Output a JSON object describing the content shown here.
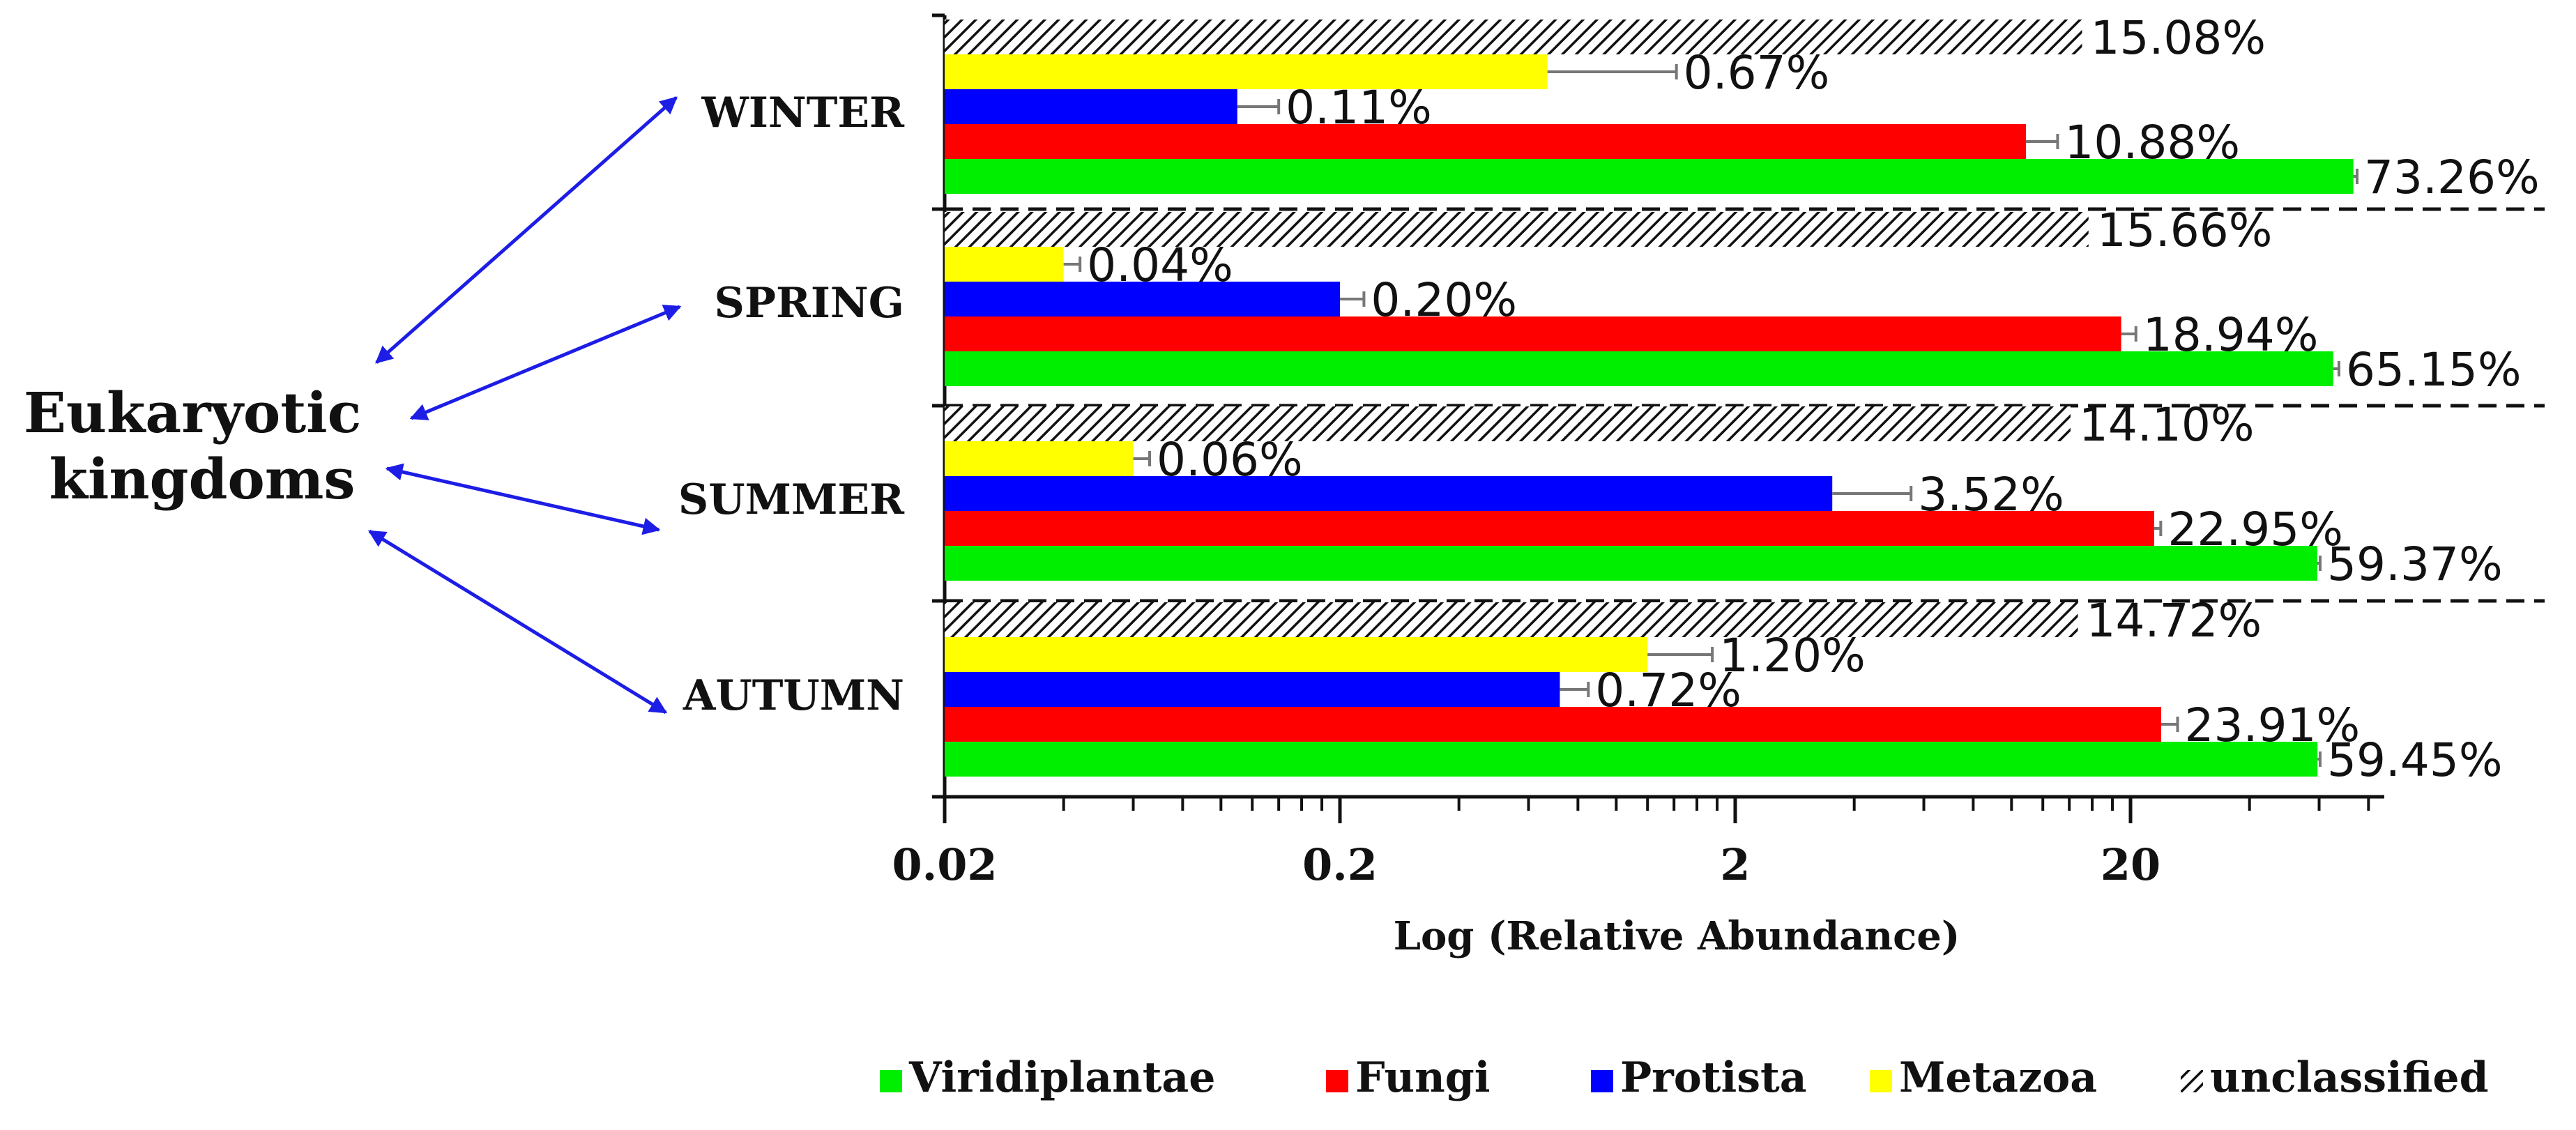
{
  "chart_data": {
    "type": "bar",
    "orientation": "horizontal",
    "stacked": false,
    "xscale": "log",
    "xlabel": "Log (Relative Abundance)",
    "ylabel": "",
    "xlim": [
      0.02,
      100
    ],
    "x_ticks": [
      {
        "value": 0.02,
        "label": "0.02"
      },
      {
        "value": 0.2,
        "label": "0.2"
      },
      {
        "value": 2,
        "label": "2"
      },
      {
        "value": 20,
        "label": "20"
      }
    ],
    "side_label": "Eukaryotic kingdoms",
    "categories": [
      "WINTER",
      "SPRING",
      "SUMMER",
      "AUTUMN"
    ],
    "series": [
      {
        "name": "unclassified",
        "color": "hatch",
        "values": [
          15.08,
          15.66,
          14.1,
          14.72
        ],
        "errors": [
          0,
          0,
          0,
          0
        ],
        "labels": [
          "15.08%",
          "15.66%",
          "14.10%",
          "14.72%"
        ]
      },
      {
        "name": "Metazoa",
        "color": "#ffff00",
        "values": [
          0.67,
          0.04,
          0.06,
          1.2
        ],
        "errors": [
          0.75,
          0.004,
          0.006,
          0.55
        ],
        "labels": [
          "0.67%",
          "0.04%",
          "0.06%",
          "1.20%"
        ]
      },
      {
        "name": "Protista",
        "color": "#0000ff",
        "values": [
          0.11,
          0.2,
          3.52,
          0.72
        ],
        "errors": [
          0.03,
          0.03,
          2.05,
          0.13
        ],
        "labels": [
          "0.11%",
          "0.20%",
          "3.52%",
          "0.72%"
        ]
      },
      {
        "name": "Fungi",
        "color": "#ff0000",
        "values": [
          10.88,
          18.94,
          22.95,
          23.91
        ],
        "errors": [
          2.2,
          1.7,
          0.9,
          2.4
        ],
        "labels": [
          "10.88%",
          "18.94%",
          "22.95%",
          "23.91%"
        ]
      },
      {
        "name": "Viridiplantae",
        "color": "#00ee00",
        "values": [
          73.26,
          65.15,
          59.37,
          59.45
        ],
        "errors": [
          1.6,
          2.2,
          1.0,
          0.9
        ],
        "labels": [
          "73.26%",
          "65.15%",
          "59.37%",
          "59.45%"
        ]
      }
    ],
    "legend": {
      "placement": "bottom-right",
      "items": [
        "Viridiplantae",
        "Fungi",
        "Protista",
        "Metazoa",
        "unclassified"
      ]
    }
  }
}
